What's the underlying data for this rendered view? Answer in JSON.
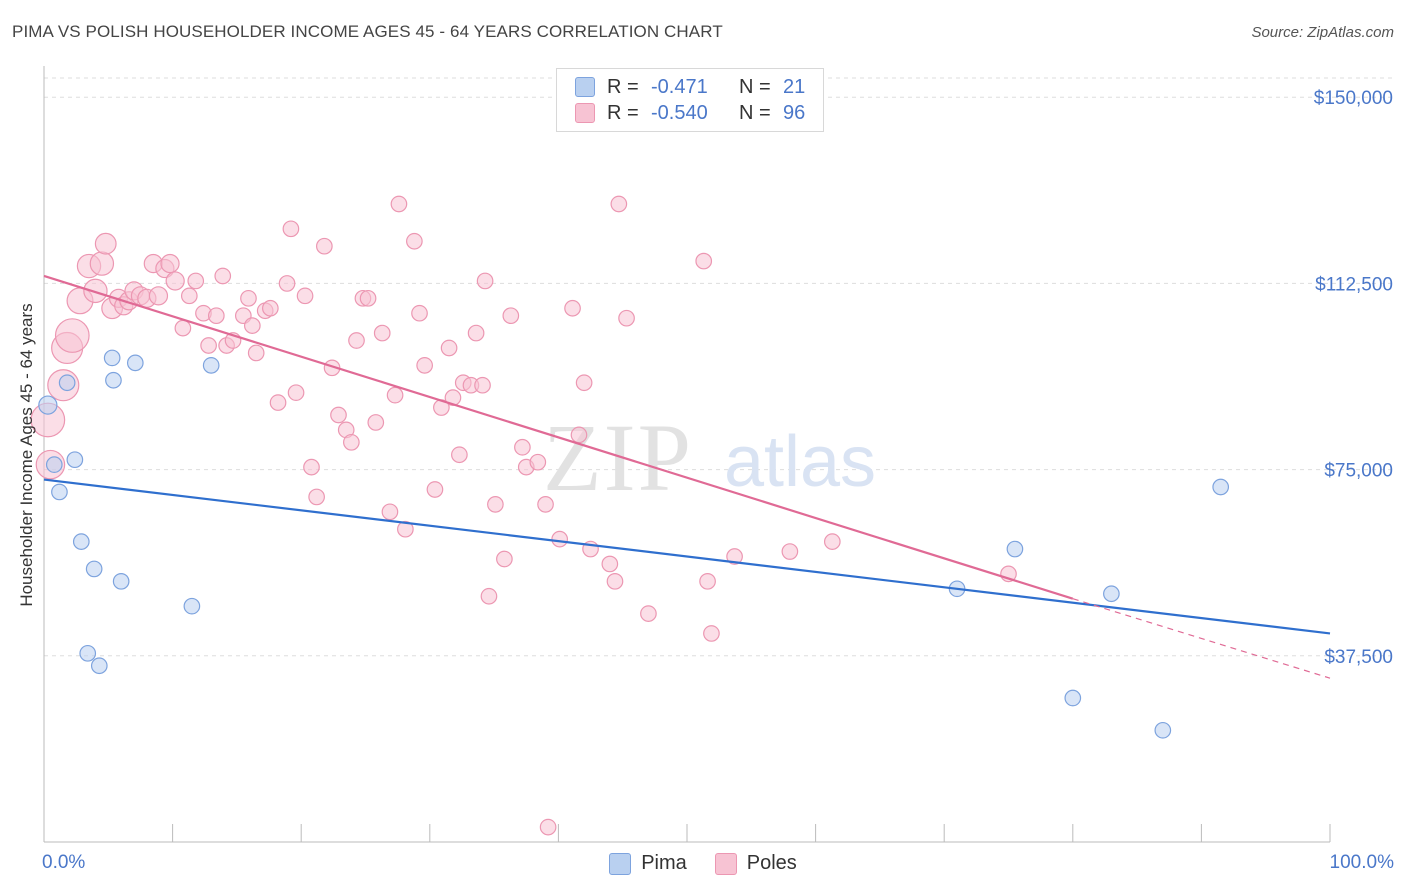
{
  "title": "PIMA VS POLISH HOUSEHOLDER INCOME AGES 45 - 64 YEARS CORRELATION CHART",
  "source": "Source: ZipAtlas.com",
  "watermark": {
    "zip": "ZIP",
    "atlas": "atlas"
  },
  "legend_top": [
    {
      "r_label": "R =",
      "r_value": "-0.471",
      "n_label": "N =",
      "n_value": "21"
    },
    {
      "r_label": "R =",
      "r_value": "-0.540",
      "n_label": "N =",
      "n_value": "96"
    }
  ],
  "legend_bottom": [
    "Pima",
    "Poles"
  ],
  "colors": {
    "pima_fill": "#b9d0f0",
    "pima_stroke": "#7da3de",
    "pima_line": "#2f6fce",
    "poles_fill": "#f7c3d3",
    "poles_stroke": "#ec97b2",
    "poles_line": "#e06a95",
    "tick_label": "#4a77c9",
    "grid": "#dddddd"
  },
  "chart_data": {
    "type": "scatter",
    "title": "PIMA VS POLISH HOUSEHOLDER INCOME AGES 45 - 64 YEARS CORRELATION CHART",
    "xlabel": "",
    "ylabel": "Householder Income Ages 45 - 64 years",
    "xlim": [
      0,
      100
    ],
    "ylim": [
      0,
      157500
    ],
    "x_tick_labels": [
      "0.0%",
      "100.0%"
    ],
    "y_ticks": [
      37500,
      75000,
      112500,
      150000
    ],
    "y_tick_labels": [
      "$37,500",
      "$75,000",
      "$112,500",
      "$150,000"
    ],
    "grid": true,
    "legend_placement": "top-center",
    "series": [
      {
        "name": "Pima",
        "r": -0.471,
        "n": 21,
        "points": [
          [
            0.3,
            88000,
            14
          ],
          [
            0.8,
            76000,
            12
          ],
          [
            1.2,
            70500,
            12
          ],
          [
            1.8,
            92500,
            12
          ],
          [
            2.4,
            77000,
            12
          ],
          [
            2.9,
            60500,
            12
          ],
          [
            3.4,
            38000,
            12
          ],
          [
            3.9,
            55000,
            12
          ],
          [
            4.3,
            35500,
            12
          ],
          [
            5.3,
            97500,
            12
          ],
          [
            5.4,
            93000,
            12
          ],
          [
            6.0,
            52500,
            12
          ],
          [
            7.1,
            96500,
            12
          ],
          [
            11.5,
            47500,
            12
          ],
          [
            13.0,
            96000,
            12
          ],
          [
            71.0,
            51000,
            12
          ],
          [
            75.5,
            59000,
            12
          ],
          [
            80.0,
            29000,
            12
          ],
          [
            83.0,
            50000,
            12
          ],
          [
            87.0,
            22500,
            12
          ],
          [
            91.5,
            71500,
            12
          ]
        ],
        "trend": {
          "x": [
            0,
            100
          ],
          "y": [
            73000,
            42000
          ],
          "dashed_x": []
        }
      },
      {
        "name": "Poles",
        "r": -0.54,
        "n": 96,
        "points": [
          [
            0.3,
            85000,
            26
          ],
          [
            0.5,
            76000,
            22
          ],
          [
            1.5,
            92000,
            24
          ],
          [
            1.8,
            99500,
            24
          ],
          [
            2.2,
            102000,
            26
          ],
          [
            2.8,
            109000,
            20
          ],
          [
            3.5,
            116000,
            18
          ],
          [
            4.0,
            111000,
            18
          ],
          [
            4.5,
            116500,
            18
          ],
          [
            4.8,
            120500,
            16
          ],
          [
            5.3,
            107500,
            16
          ],
          [
            5.8,
            109500,
            14
          ],
          [
            6.2,
            108000,
            14
          ],
          [
            6.6,
            109000,
            14
          ],
          [
            7.0,
            111000,
            14
          ],
          [
            7.5,
            110000,
            14
          ],
          [
            8.0,
            109500,
            14
          ],
          [
            8.5,
            116500,
            14
          ],
          [
            8.9,
            110000,
            14
          ],
          [
            9.4,
            115500,
            14
          ],
          [
            9.8,
            116500,
            14
          ],
          [
            10.2,
            113000,
            14
          ],
          [
            10.8,
            103500,
            12
          ],
          [
            11.3,
            110000,
            12
          ],
          [
            11.8,
            113000,
            12
          ],
          [
            12.4,
            106500,
            12
          ],
          [
            12.8,
            100000,
            12
          ],
          [
            13.4,
            106000,
            12
          ],
          [
            13.9,
            114000,
            12
          ],
          [
            14.2,
            100000,
            12
          ],
          [
            14.7,
            101000,
            12
          ],
          [
            15.5,
            106000,
            12
          ],
          [
            15.9,
            109500,
            12
          ],
          [
            16.2,
            104000,
            12
          ],
          [
            16.5,
            98500,
            12
          ],
          [
            17.2,
            107000,
            12
          ],
          [
            17.6,
            107500,
            12
          ],
          [
            18.2,
            88500,
            12
          ],
          [
            18.9,
            112500,
            12
          ],
          [
            19.2,
            123500,
            12
          ],
          [
            19.6,
            90500,
            12
          ],
          [
            20.3,
            110000,
            12
          ],
          [
            20.8,
            75500,
            12
          ],
          [
            21.2,
            69500,
            12
          ],
          [
            21.8,
            120000,
            12
          ],
          [
            22.4,
            95500,
            12
          ],
          [
            22.9,
            86000,
            12
          ],
          [
            23.5,
            83000,
            12
          ],
          [
            23.9,
            80500,
            12
          ],
          [
            24.3,
            101000,
            12
          ],
          [
            24.8,
            109500,
            12
          ],
          [
            25.2,
            109500,
            12
          ],
          [
            25.8,
            84500,
            12
          ],
          [
            26.3,
            102500,
            12
          ],
          [
            26.9,
            66500,
            12
          ],
          [
            27.3,
            90000,
            12
          ],
          [
            27.6,
            128500,
            12
          ],
          [
            28.1,
            63000,
            12
          ],
          [
            28.8,
            121000,
            12
          ],
          [
            29.2,
            106500,
            12
          ],
          [
            29.6,
            96000,
            12
          ],
          [
            30.4,
            71000,
            12
          ],
          [
            30.9,
            87500,
            12
          ],
          [
            31.5,
            99500,
            12
          ],
          [
            31.8,
            89500,
            12
          ],
          [
            32.3,
            78000,
            12
          ],
          [
            32.6,
            92500,
            12
          ],
          [
            33.2,
            92000,
            12
          ],
          [
            33.6,
            102500,
            12
          ],
          [
            34.1,
            92000,
            12
          ],
          [
            34.3,
            113000,
            12
          ],
          [
            34.6,
            49500,
            12
          ],
          [
            35.1,
            68000,
            12
          ],
          [
            35.8,
            57000,
            12
          ],
          [
            36.3,
            106000,
            12
          ],
          [
            37.2,
            79500,
            12
          ],
          [
            37.5,
            75500,
            12
          ],
          [
            38.4,
            76500,
            12
          ],
          [
            39.0,
            68000,
            12
          ],
          [
            39.2,
            3000,
            12
          ],
          [
            40.1,
            61000,
            12
          ],
          [
            41.1,
            107500,
            12
          ],
          [
            41.6,
            82000,
            12
          ],
          [
            42.0,
            92500,
            12
          ],
          [
            42.5,
            59000,
            12
          ],
          [
            44.0,
            56000,
            12
          ],
          [
            44.4,
            52500,
            12
          ],
          [
            44.7,
            128500,
            12
          ],
          [
            45.3,
            105500,
            12
          ],
          [
            47.0,
            46000,
            12
          ],
          [
            51.3,
            117000,
            12
          ],
          [
            51.6,
            52500,
            12
          ],
          [
            51.9,
            42000,
            12
          ],
          [
            53.7,
            57500,
            12
          ],
          [
            58.0,
            58500,
            12
          ],
          [
            61.3,
            60500,
            12
          ],
          [
            75.0,
            54000,
            12
          ]
        ],
        "trend": {
          "x": [
            0,
            80
          ],
          "y": [
            114000,
            49000
          ],
          "dashed_x": [
            80,
            100
          ],
          "dashed_y": [
            49000,
            33000
          ]
        }
      }
    ]
  }
}
